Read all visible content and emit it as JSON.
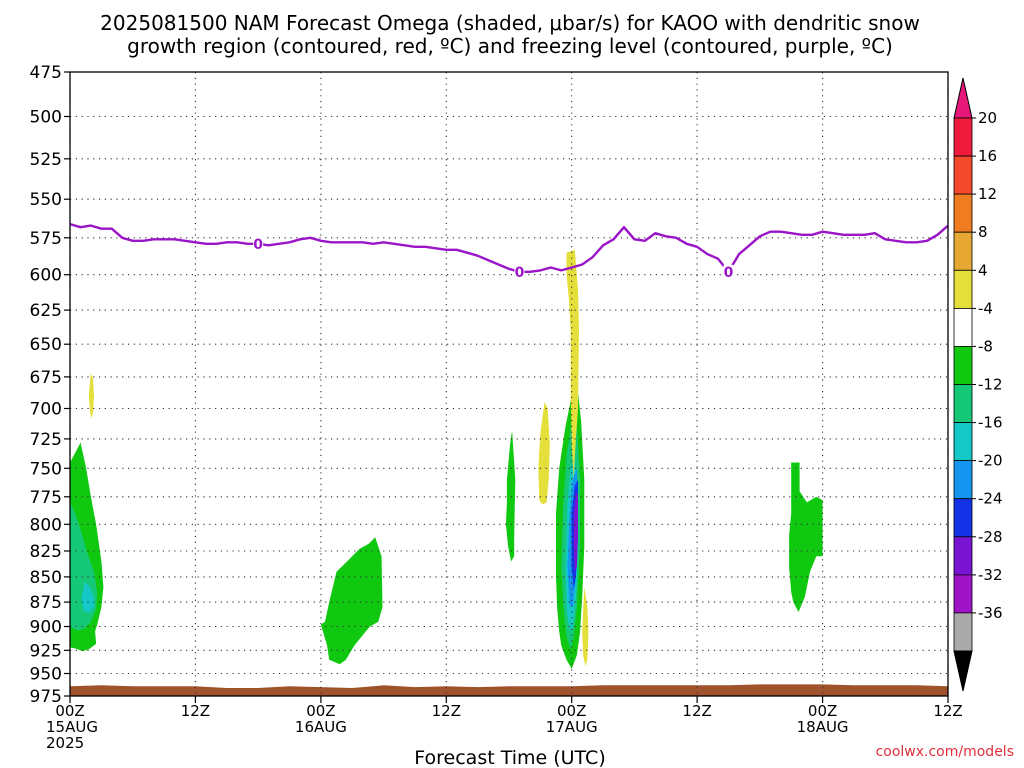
{
  "chart_data": {
    "type": "contour-timeheight",
    "title_lines": [
      "2025081500 NAM Forecast Omega (shaded, μbar/s) for KAOO with dendritic snow",
      "growth region (contoured, red, ºC) and freezing level (contoured, purple, ºC)"
    ],
    "xlabel": "Forecast Time (UTC)",
    "credit": "coolwx.com/models",
    "xlim_hours": [
      0,
      84
    ],
    "ylim_hpa": [
      475,
      975
    ],
    "y_ticks": [
      475,
      500,
      525,
      550,
      575,
      600,
      625,
      650,
      675,
      700,
      725,
      750,
      775,
      800,
      825,
      850,
      875,
      900,
      925,
      950,
      975
    ],
    "x_ticks": [
      {
        "hour": 0,
        "lines": [
          "00Z",
          "15AUG",
          "2025"
        ]
      },
      {
        "hour": 12,
        "lines": [
          "12Z"
        ]
      },
      {
        "hour": 24,
        "lines": [
          "00Z",
          "16AUG"
        ]
      },
      {
        "hour": 36,
        "lines": [
          "12Z"
        ]
      },
      {
        "hour": 48,
        "lines": [
          "00Z",
          "17AUG"
        ]
      },
      {
        "hour": 60,
        "lines": [
          "12Z"
        ]
      },
      {
        "hour": 72,
        "lines": [
          "00Z",
          "18AUG"
        ]
      },
      {
        "hour": 84,
        "lines": [
          "12Z"
        ]
      }
    ],
    "grid": true,
    "colorbar": {
      "labels": [
        "20",
        "16",
        "12",
        "8",
        "4",
        "-4",
        "-8",
        "-12",
        "-16",
        "-20",
        "-24",
        "-28",
        "-32",
        "-36"
      ],
      "colors": [
        "#f01a3c",
        "#f24a2a",
        "#ef7c20",
        "#e6a832",
        "#e4df3a",
        "#ffffff",
        "#10c810",
        "#14c878",
        "#14c8c8",
        "#1496f0",
        "#1432e6",
        "#7814d2",
        "#a014c8",
        "#aaaaaa"
      ],
      "top_arrow_color": "#e6197a",
      "bottom_arrow_color": "#000000"
    },
    "freezing_level": {
      "color": "#9a14c8",
      "label": "0",
      "label_hours": [
        18,
        43,
        63
      ],
      "points": [
        [
          0,
          566
        ],
        [
          1,
          568
        ],
        [
          2,
          567
        ],
        [
          3,
          569
        ],
        [
          4,
          569
        ],
        [
          5,
          575
        ],
        [
          6,
          577
        ],
        [
          7,
          577
        ],
        [
          8,
          576
        ],
        [
          9,
          576
        ],
        [
          10,
          576
        ],
        [
          11,
          577
        ],
        [
          12,
          578
        ],
        [
          13,
          579
        ],
        [
          14,
          579
        ],
        [
          15,
          578
        ],
        [
          16,
          578
        ],
        [
          17,
          579
        ],
        [
          18,
          579
        ],
        [
          19,
          580
        ],
        [
          20,
          579
        ],
        [
          21,
          578
        ],
        [
          22,
          576
        ],
        [
          23,
          575
        ],
        [
          24,
          577
        ],
        [
          25,
          578
        ],
        [
          26,
          578
        ],
        [
          27,
          578
        ],
        [
          28,
          578
        ],
        [
          29,
          579
        ],
        [
          30,
          578
        ],
        [
          31,
          579
        ],
        [
          32,
          580
        ],
        [
          33,
          581
        ],
        [
          34,
          581
        ],
        [
          35,
          582
        ],
        [
          36,
          583
        ],
        [
          37,
          583
        ],
        [
          38,
          585
        ],
        [
          39,
          587
        ],
        [
          40,
          590
        ],
        [
          41,
          593
        ],
        [
          42,
          596
        ],
        [
          43,
          598
        ],
        [
          44,
          598
        ],
        [
          45,
          597
        ],
        [
          46,
          595
        ],
        [
          47,
          597
        ],
        [
          48,
          595
        ],
        [
          49,
          593
        ],
        [
          50,
          588
        ],
        [
          51,
          580
        ],
        [
          52,
          576
        ],
        [
          53,
          568
        ],
        [
          54,
          576
        ],
        [
          55,
          577
        ],
        [
          56,
          572
        ],
        [
          57,
          574
        ],
        [
          58,
          575
        ],
        [
          59,
          579
        ],
        [
          60,
          581
        ],
        [
          61,
          586
        ],
        [
          62,
          589
        ],
        [
          63,
          598
        ],
        [
          64,
          586
        ],
        [
          65,
          580
        ],
        [
          66,
          574
        ],
        [
          67,
          571
        ],
        [
          68,
          571
        ],
        [
          69,
          572
        ],
        [
          70,
          573
        ],
        [
          71,
          573
        ],
        [
          72,
          571
        ],
        [
          73,
          572
        ],
        [
          74,
          573
        ],
        [
          75,
          573
        ],
        [
          76,
          573
        ],
        [
          77,
          572
        ],
        [
          78,
          576
        ],
        [
          79,
          577
        ],
        [
          80,
          578
        ],
        [
          81,
          578
        ],
        [
          82,
          577
        ],
        [
          83,
          573
        ],
        [
          84,
          567
        ]
      ]
    },
    "omega_regions": [
      {
        "color": "#e4df3a",
        "points": [
          [
            1.8,
            690
          ],
          [
            1.9,
            680
          ],
          [
            2.0,
            672
          ],
          [
            2.2,
            676
          ],
          [
            2.3,
            690
          ],
          [
            2.2,
            704
          ],
          [
            2.0,
            708
          ],
          [
            1.9,
            700
          ]
        ]
      },
      {
        "color": "#10c810",
        "points": [
          [
            0,
            745
          ],
          [
            0.6,
            735
          ],
          [
            1.0,
            728
          ],
          [
            1.5,
            748
          ],
          [
            2.0,
            775
          ],
          [
            2.5,
            800
          ],
          [
            3.0,
            835
          ],
          [
            3.2,
            860
          ],
          [
            3.0,
            880
          ],
          [
            2.6,
            898
          ],
          [
            2.4,
            905
          ],
          [
            2.5,
            918
          ],
          [
            1.8,
            924
          ],
          [
            1.2,
            926
          ],
          [
            0.5,
            923
          ],
          [
            0,
            922
          ]
        ]
      },
      {
        "color": "#14c878",
        "points": [
          [
            0,
            780
          ],
          [
            0.5,
            790
          ],
          [
            1.0,
            805
          ],
          [
            1.6,
            825
          ],
          [
            2.3,
            845
          ],
          [
            2.6,
            865
          ],
          [
            2.5,
            882
          ],
          [
            2.0,
            895
          ],
          [
            1.4,
            902
          ],
          [
            0.7,
            904
          ],
          [
            0,
            900
          ]
        ]
      },
      {
        "color": "#14c8c8",
        "points": [
          [
            1.4,
            855
          ],
          [
            1.9,
            860
          ],
          [
            2.3,
            870
          ],
          [
            2.3,
            880
          ],
          [
            1.8,
            886
          ],
          [
            1.3,
            884
          ],
          [
            1.1,
            872
          ]
        ]
      },
      {
        "color": "#10c810",
        "points": [
          [
            25.5,
            845
          ],
          [
            26.5,
            835
          ],
          [
            27.7,
            823
          ],
          [
            28.6,
            818
          ],
          [
            29.2,
            812
          ],
          [
            29.8,
            830
          ],
          [
            29.9,
            880
          ],
          [
            29.5,
            895
          ],
          [
            28.7,
            900
          ],
          [
            28.3,
            905
          ],
          [
            27.2,
            920
          ],
          [
            26.4,
            935
          ],
          [
            25.8,
            940
          ],
          [
            24.8,
            935
          ],
          [
            24.6,
            920
          ],
          [
            24.0,
            898
          ],
          [
            24.4,
            895
          ],
          [
            24.8,
            875
          ]
        ]
      },
      {
        "color": "#10c810",
        "points": [
          [
            41.8,
            760
          ],
          [
            42.1,
            730
          ],
          [
            42.3,
            718
          ],
          [
            42.6,
            760
          ],
          [
            42.5,
            810
          ],
          [
            42.5,
            830
          ],
          [
            42.2,
            835
          ],
          [
            41.9,
            820
          ],
          [
            41.7,
            800
          ],
          [
            41.8,
            780
          ]
        ]
      },
      {
        "color": "#e4df3a",
        "points": [
          [
            44.8,
            750
          ],
          [
            45.0,
            720
          ],
          [
            45.4,
            695
          ],
          [
            45.7,
            700
          ],
          [
            45.9,
            730
          ],
          [
            45.8,
            760
          ],
          [
            45.6,
            780
          ],
          [
            45.2,
            782
          ],
          [
            44.9,
            778
          ]
        ]
      },
      {
        "color": "#10c810",
        "points": [
          [
            46.5,
            790
          ],
          [
            46.8,
            750
          ],
          [
            47.4,
            715
          ],
          [
            48.0,
            690
          ],
          [
            48.4,
            672
          ],
          [
            48.9,
            710
          ],
          [
            49.2,
            760
          ],
          [
            49.2,
            820
          ],
          [
            49.0,
            870
          ],
          [
            48.8,
            905
          ],
          [
            48.5,
            930
          ],
          [
            48.0,
            945
          ],
          [
            47.5,
            935
          ],
          [
            47.0,
            920
          ],
          [
            46.8,
            905
          ],
          [
            46.6,
            880
          ],
          [
            46.5,
            850
          ]
        ]
      },
      {
        "color": "#14c878",
        "points": [
          [
            47.2,
            780
          ],
          [
            47.5,
            740
          ],
          [
            48.0,
            710
          ],
          [
            48.5,
            715
          ],
          [
            48.8,
            760
          ],
          [
            48.8,
            820
          ],
          [
            48.5,
            880
          ],
          [
            48.2,
            910
          ],
          [
            47.9,
            925
          ],
          [
            47.5,
            910
          ],
          [
            47.2,
            880
          ],
          [
            47.0,
            840
          ]
        ]
      },
      {
        "color": "#14c8c8",
        "points": [
          [
            47.6,
            780
          ],
          [
            47.9,
            750
          ],
          [
            48.3,
            740
          ],
          [
            48.5,
            770
          ],
          [
            48.6,
            820
          ],
          [
            48.4,
            870
          ],
          [
            48.1,
            900
          ],
          [
            47.8,
            905
          ],
          [
            47.5,
            880
          ],
          [
            47.4,
            840
          ]
        ]
      },
      {
        "color": "#1496f0",
        "points": [
          [
            47.8,
            790
          ],
          [
            48.1,
            760
          ],
          [
            48.5,
            750
          ],
          [
            48.6,
            800
          ],
          [
            48.4,
            850
          ],
          [
            48.1,
            880
          ],
          [
            47.8,
            878
          ],
          [
            47.6,
            840
          ]
        ]
      },
      {
        "color": "#1432e6",
        "points": [
          [
            48.0,
            790
          ],
          [
            48.3,
            765
          ],
          [
            48.6,
            760
          ],
          [
            48.6,
            810
          ],
          [
            48.4,
            850
          ],
          [
            48.2,
            862
          ],
          [
            48.0,
            840
          ]
        ]
      },
      {
        "color": "#7814d2",
        "points": [
          [
            48.2,
            790
          ],
          [
            48.4,
            770
          ],
          [
            48.6,
            775
          ],
          [
            48.6,
            810
          ],
          [
            48.5,
            840
          ],
          [
            48.3,
            845
          ],
          [
            48.2,
            820
          ]
        ]
      },
      {
        "color": "#e4df3a",
        "points": [
          [
            47.5,
            600
          ],
          [
            47.5,
            585
          ],
          [
            48.3,
            583
          ],
          [
            48.6,
            610
          ],
          [
            48.7,
            640
          ],
          [
            48.6,
            700
          ],
          [
            48.3,
            740
          ],
          [
            48.2,
            760
          ],
          [
            48.0,
            730
          ],
          [
            47.9,
            690
          ],
          [
            47.9,
            640
          ],
          [
            47.7,
            615
          ]
        ]
      },
      {
        "color": "#e4df3a",
        "points": [
          [
            49.2,
            860
          ],
          [
            49.5,
            880
          ],
          [
            49.6,
            905
          ],
          [
            49.5,
            935
          ],
          [
            49.3,
            942
          ],
          [
            49.1,
            930
          ],
          [
            49.0,
            905
          ]
        ]
      },
      {
        "color": "#10c810",
        "points": [
          [
            69.0,
            745
          ],
          [
            69.8,
            745
          ],
          [
            69.8,
            770
          ],
          [
            70.5,
            780
          ],
          [
            71.4,
            775
          ],
          [
            72.0,
            778
          ],
          [
            72.0,
            830
          ],
          [
            71.4,
            830
          ],
          [
            70.8,
            845
          ],
          [
            70.3,
            870
          ],
          [
            69.7,
            885
          ],
          [
            69.2,
            875
          ],
          [
            69.0,
            865
          ],
          [
            68.8,
            840
          ],
          [
            68.8,
            810
          ],
          [
            69.0,
            790
          ]
        ]
      }
    ],
    "terrain": {
      "color": "#a0522d",
      "surface_points": [
        [
          0,
          964
        ],
        [
          3,
          963
        ],
        [
          6,
          964
        ],
        [
          9,
          964
        ],
        [
          12,
          964
        ],
        [
          15,
          966
        ],
        [
          18,
          966
        ],
        [
          21,
          964
        ],
        [
          24,
          965
        ],
        [
          27,
          966
        ],
        [
          30,
          963
        ],
        [
          33,
          965
        ],
        [
          36,
          964
        ],
        [
          39,
          965
        ],
        [
          42,
          964
        ],
        [
          45,
          964
        ],
        [
          48,
          964
        ],
        [
          51,
          963
        ],
        [
          54,
          963
        ],
        [
          57,
          963
        ],
        [
          60,
          963
        ],
        [
          63,
          963
        ],
        [
          66,
          962
        ],
        [
          69,
          962
        ],
        [
          72,
          962
        ],
        [
          75,
          963
        ],
        [
          78,
          963
        ],
        [
          81,
          963
        ],
        [
          84,
          964
        ]
      ]
    }
  }
}
